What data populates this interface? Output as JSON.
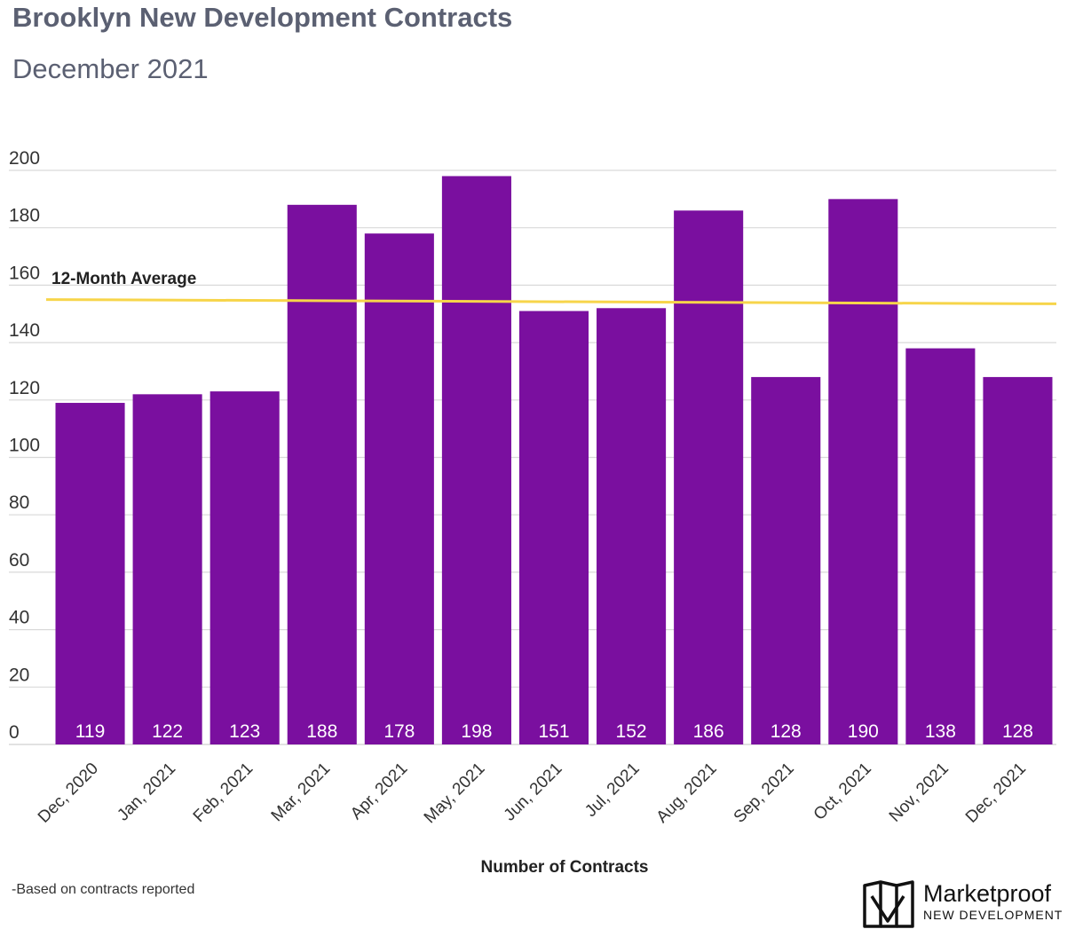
{
  "header": {
    "title": "Brooklyn New Development Contracts",
    "subtitle": "December 2021"
  },
  "footnote": "-Based on contracts reported",
  "logo": {
    "name": "Marketproof",
    "tagline": "NEW DEVELOPMENT"
  },
  "colors": {
    "bar": "#7a0f9f",
    "average_line": "#f7d54a",
    "grid": "#d9d9d9",
    "title": "#5b6072"
  },
  "chart_data": {
    "type": "bar",
    "title": "Brooklyn New Development Contracts",
    "subtitle": "December 2021",
    "xlabel": "Number of Contracts",
    "ylabel": "",
    "ylim": [
      0,
      200
    ],
    "yticks": [
      0,
      20,
      40,
      60,
      80,
      100,
      120,
      140,
      160,
      180,
      200
    ],
    "grid": true,
    "categories": [
      "Dec, 2020",
      "Jan, 2021",
      "Feb, 2021",
      "Mar, 2021",
      "Apr, 2021",
      "May, 2021",
      "Jun, 2021",
      "Jul, 2021",
      "Aug, 2021",
      "Sep, 2021",
      "Oct, 2021",
      "Nov, 2021",
      "Dec, 2021"
    ],
    "series": [
      {
        "values": [
          119,
          122,
          123,
          188,
          178,
          198,
          151,
          152,
          186,
          128,
          190,
          138,
          128
        ],
        "data_labels": true
      }
    ],
    "reference_line": {
      "label": "12-Month Average",
      "start_value": 155,
      "end_value": 153.5
    }
  }
}
